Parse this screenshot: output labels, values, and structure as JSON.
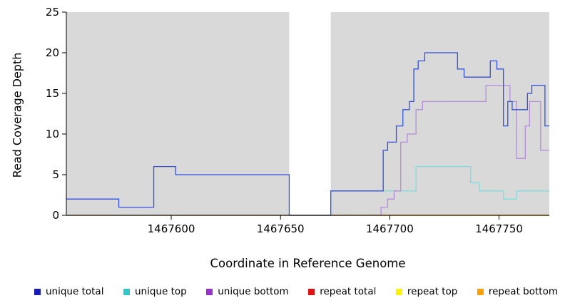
{
  "chart_data": {
    "type": "line",
    "subtype": "step",
    "title": "",
    "xlabel": "Coordinate in Reference Genome",
    "ylabel": "Read Coverage Depth",
    "xlim": [
      1467552,
      1467773
    ],
    "ylim": [
      0,
      25
    ],
    "xticks": [
      1467600,
      1467650,
      1467700,
      1467750
    ],
    "yticks": [
      0,
      5,
      10,
      15,
      20,
      25
    ],
    "grid": false,
    "legend_position": "bottom",
    "plot_bg": "#d9d9d9",
    "page_bg": "#ffffff",
    "axis_color": "#000000",
    "highlight_band": {
      "x0": 1467654,
      "x1": 1467673,
      "color": "#ffffff"
    },
    "draw_order": [
      3,
      4,
      5,
      1,
      2,
      0
    ],
    "series": [
      {
        "name": "unique total",
        "swatch": "#1a1ab8",
        "color": "#3350dc",
        "steps": [
          [
            1467552,
            2
          ],
          [
            1467576,
            1
          ],
          [
            1467592,
            6
          ],
          [
            1467602,
            5
          ],
          [
            1467654,
            0
          ],
          [
            1467673,
            3
          ],
          [
            1467697,
            8
          ],
          [
            1467699,
            9
          ],
          [
            1467703,
            11
          ],
          [
            1467706,
            13
          ],
          [
            1467709,
            14
          ],
          [
            1467711,
            18
          ],
          [
            1467713,
            19
          ],
          [
            1467716,
            20
          ],
          [
            1467731,
            18
          ],
          [
            1467734,
            17
          ],
          [
            1467746,
            19
          ],
          [
            1467749,
            18
          ],
          [
            1467752,
            11
          ],
          [
            1467754,
            14
          ],
          [
            1467756,
            13
          ],
          [
            1467763,
            15
          ],
          [
            1467765,
            16
          ],
          [
            1467771,
            11
          ]
        ]
      },
      {
        "name": "unique top",
        "swatch": "#2fc9c9",
        "color": "#7adede",
        "steps": [
          [
            1467552,
            0
          ],
          [
            1467673,
            3
          ],
          [
            1467712,
            6
          ],
          [
            1467737,
            4
          ],
          [
            1467741,
            3
          ],
          [
            1467752,
            2
          ],
          [
            1467758,
            3
          ]
        ]
      },
      {
        "name": "unique bottom",
        "swatch": "#9932cc",
        "color": "#b48cdb",
        "steps": [
          [
            1467552,
            0
          ],
          [
            1467696,
            1
          ],
          [
            1467699,
            2
          ],
          [
            1467702,
            3
          ],
          [
            1467705,
            9
          ],
          [
            1467708,
            10
          ],
          [
            1467712,
            13
          ],
          [
            1467715,
            14
          ],
          [
            1467744,
            16
          ],
          [
            1467755,
            14
          ],
          [
            1467758,
            7
          ],
          [
            1467762,
            11
          ],
          [
            1467764,
            14
          ],
          [
            1467769,
            8
          ]
        ]
      },
      {
        "name": "repeat total",
        "swatch": "#dd1111",
        "color": "#cc3333",
        "steps": [
          [
            1467552,
            0
          ]
        ]
      },
      {
        "name": "repeat top",
        "swatch": "#fff200",
        "color": "#f0e400",
        "steps": [
          [
            1467552,
            0
          ]
        ]
      },
      {
        "name": "repeat bottom",
        "swatch": "#ffa000",
        "color": "#ff9e00",
        "steps": [
          [
            1467552,
            0
          ]
        ]
      }
    ]
  }
}
